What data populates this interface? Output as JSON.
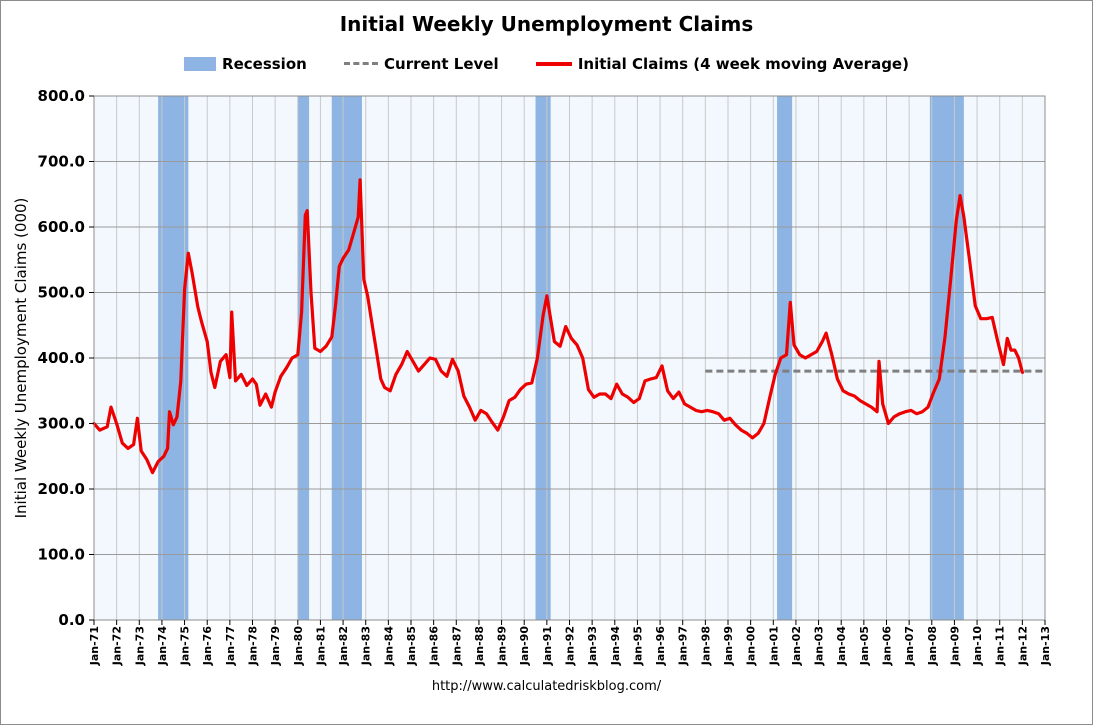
{
  "chart_data": {
    "type": "line",
    "title": "Initial Weekly Unemployment Claims",
    "ylabel": "Initial Weekly Unemployment Claims (000)",
    "xlabel": "",
    "source": "http://www.calculatedriskblog.com/",
    "ylim": [
      0,
      800
    ],
    "yticks": [
      "0.0",
      "100.0",
      "200.0",
      "300.0",
      "400.0",
      "500.0",
      "600.0",
      "700.0",
      "800.0"
    ],
    "xlim": [
      1971,
      2013
    ],
    "xticks": [
      "Jan-71",
      "Jan-72",
      "Jan-73",
      "Jan-74",
      "Jan-75",
      "Jan-76",
      "Jan-77",
      "Jan-78",
      "Jan-79",
      "Jan-80",
      "Jan-81",
      "Jan-82",
      "Jan-83",
      "Jan-84",
      "Jan-85",
      "Jan-86",
      "Jan-87",
      "Jan-88",
      "Jan-89",
      "Jan-90",
      "Jan-91",
      "Jan-92",
      "Jan-93",
      "Jan-94",
      "Jan-95",
      "Jan-96",
      "Jan-97",
      "Jan-98",
      "Jan-99",
      "Jan-00",
      "Jan-01",
      "Jan-02",
      "Jan-03",
      "Jan-04",
      "Jan-05",
      "Jan-06",
      "Jan-07",
      "Jan-08",
      "Jan-09",
      "Jan-10",
      "Jan-11",
      "Jan-12",
      "Jan-13"
    ],
    "grid": true,
    "legend_position": "top",
    "legend": [
      {
        "key": "recession",
        "label": "Recession",
        "color": "#8db4e2"
      },
      {
        "key": "current",
        "label": "Current Level",
        "color": "#7f7f7f"
      },
      {
        "key": "claims",
        "label": "Initial Claims (4 week moving Average)",
        "color": "#ee0000"
      }
    ],
    "recessions": [
      {
        "start": "1973-11",
        "end": "1975-03"
      },
      {
        "start": "1980-01",
        "end": "1980-07"
      },
      {
        "start": "1981-07",
        "end": "1982-11"
      },
      {
        "start": "1990-07",
        "end": "1991-03"
      },
      {
        "start": "2001-03",
        "end": "2001-11"
      },
      {
        "start": "2007-12",
        "end": "2009-06"
      }
    ],
    "current_level": {
      "value": 380,
      "start": "1998-01",
      "end": "2013-01"
    },
    "series": [
      {
        "name": "Initial Claims (4 week moving Average)",
        "points": [
          [
            "1971-01",
            300
          ],
          [
            "1971-04",
            290
          ],
          [
            "1971-08",
            295
          ],
          [
            "1971-10",
            325
          ],
          [
            "1972-01",
            300
          ],
          [
            "1972-04",
            270
          ],
          [
            "1972-07",
            262
          ],
          [
            "1972-10",
            268
          ],
          [
            "1972-12",
            308
          ],
          [
            "1973-02",
            258
          ],
          [
            "1973-05",
            245
          ],
          [
            "1973-08",
            225
          ],
          [
            "1973-11",
            242
          ],
          [
            "1974-02",
            250
          ],
          [
            "1974-04",
            262
          ],
          [
            "1974-05",
            318
          ],
          [
            "1974-07",
            298
          ],
          [
            "1974-09",
            310
          ],
          [
            "1974-11",
            365
          ],
          [
            "1975-01",
            505
          ],
          [
            "1975-03",
            560
          ],
          [
            "1975-05",
            530
          ],
          [
            "1975-08",
            478
          ],
          [
            "1975-10",
            455
          ],
          [
            "1976-01",
            425
          ],
          [
            "1976-03",
            378
          ],
          [
            "1976-05",
            355
          ],
          [
            "1976-08",
            395
          ],
          [
            "1976-11",
            405
          ],
          [
            "1977-01",
            370
          ],
          [
            "1977-02",
            470
          ],
          [
            "1977-04",
            365
          ],
          [
            "1977-07",
            375
          ],
          [
            "1977-10",
            358
          ],
          [
            "1978-01",
            368
          ],
          [
            "1978-03",
            360
          ],
          [
            "1978-05",
            328
          ],
          [
            "1978-08",
            345
          ],
          [
            "1978-11",
            325
          ],
          [
            "1979-01",
            348
          ],
          [
            "1979-04",
            372
          ],
          [
            "1979-07",
            385
          ],
          [
            "1979-10",
            400
          ],
          [
            "1980-01",
            405
          ],
          [
            "1980-03",
            470
          ],
          [
            "1980-05",
            618
          ],
          [
            "1980-06",
            625
          ],
          [
            "1980-08",
            500
          ],
          [
            "1980-10",
            415
          ],
          [
            "1981-01",
            410
          ],
          [
            "1981-04",
            418
          ],
          [
            "1981-07",
            432
          ],
          [
            "1981-09",
            480
          ],
          [
            "1981-11",
            540
          ],
          [
            "1982-01",
            552
          ],
          [
            "1982-04",
            565
          ],
          [
            "1982-07",
            595
          ],
          [
            "1982-09",
            615
          ],
          [
            "1982-10",
            672
          ],
          [
            "1982-12",
            520
          ],
          [
            "1983-02",
            495
          ],
          [
            "1983-05",
            440
          ],
          [
            "1983-07",
            405
          ],
          [
            "1983-09",
            368
          ],
          [
            "1983-11",
            355
          ],
          [
            "1984-02",
            350
          ],
          [
            "1984-05",
            375
          ],
          [
            "1984-08",
            390
          ],
          [
            "1984-11",
            410
          ],
          [
            "1985-02",
            395
          ],
          [
            "1985-05",
            380
          ],
          [
            "1985-08",
            390
          ],
          [
            "1985-11",
            400
          ],
          [
            "1986-02",
            398
          ],
          [
            "1986-05",
            380
          ],
          [
            "1986-08",
            372
          ],
          [
            "1986-11",
            398
          ],
          [
            "1987-02",
            380
          ],
          [
            "1987-05",
            342
          ],
          [
            "1987-08",
            325
          ],
          [
            "1987-11",
            305
          ],
          [
            "1988-02",
            320
          ],
          [
            "1988-05",
            315
          ],
          [
            "1988-08",
            302
          ],
          [
            "1988-11",
            290
          ],
          [
            "1989-02",
            310
          ],
          [
            "1989-05",
            335
          ],
          [
            "1989-08",
            340
          ],
          [
            "1989-11",
            352
          ],
          [
            "1990-02",
            360
          ],
          [
            "1990-05",
            362
          ],
          [
            "1990-08",
            400
          ],
          [
            "1990-11",
            465
          ],
          [
            "1991-01",
            495
          ],
          [
            "1991-03",
            460
          ],
          [
            "1991-05",
            425
          ],
          [
            "1991-08",
            418
          ],
          [
            "1991-11",
            448
          ],
          [
            "1992-02",
            430
          ],
          [
            "1992-05",
            420
          ],
          [
            "1992-08",
            400
          ],
          [
            "1992-11",
            352
          ],
          [
            "1993-02",
            340
          ],
          [
            "1993-05",
            345
          ],
          [
            "1993-08",
            345
          ],
          [
            "1993-11",
            338
          ],
          [
            "1994-02",
            360
          ],
          [
            "1994-05",
            345
          ],
          [
            "1994-08",
            340
          ],
          [
            "1994-11",
            332
          ],
          [
            "1995-02",
            338
          ],
          [
            "1995-05",
            365
          ],
          [
            "1995-08",
            368
          ],
          [
            "1995-11",
            370
          ],
          [
            "1996-02",
            388
          ],
          [
            "1996-05",
            350
          ],
          [
            "1996-08",
            338
          ],
          [
            "1996-11",
            348
          ],
          [
            "1997-02",
            330
          ],
          [
            "1997-05",
            325
          ],
          [
            "1997-08",
            320
          ],
          [
            "1997-11",
            318
          ],
          [
            "1998-02",
            320
          ],
          [
            "1998-05",
            318
          ],
          [
            "1998-08",
            315
          ],
          [
            "1998-11",
            305
          ],
          [
            "1999-02",
            308
          ],
          [
            "1999-05",
            298
          ],
          [
            "1999-08",
            290
          ],
          [
            "1999-11",
            285
          ],
          [
            "2000-02",
            278
          ],
          [
            "2000-05",
            285
          ],
          [
            "2000-08",
            300
          ],
          [
            "2000-11",
            338
          ],
          [
            "2001-02",
            375
          ],
          [
            "2001-05",
            400
          ],
          [
            "2001-08",
            405
          ],
          [
            "2001-10",
            485
          ],
          [
            "2001-12",
            420
          ],
          [
            "2002-03",
            405
          ],
          [
            "2002-06",
            400
          ],
          [
            "2002-09",
            405
          ],
          [
            "2002-12",
            410
          ],
          [
            "2003-03",
            425
          ],
          [
            "2003-05",
            438
          ],
          [
            "2003-08",
            405
          ],
          [
            "2003-11",
            368
          ],
          [
            "2004-02",
            350
          ],
          [
            "2004-05",
            345
          ],
          [
            "2004-08",
            342
          ],
          [
            "2004-11",
            335
          ],
          [
            "2005-02",
            330
          ],
          [
            "2005-05",
            325
          ],
          [
            "2005-08",
            318
          ],
          [
            "2005-09",
            395
          ],
          [
            "2005-11",
            330
          ],
          [
            "2006-02",
            300
          ],
          [
            "2006-05",
            310
          ],
          [
            "2006-08",
            315
          ],
          [
            "2006-11",
            318
          ],
          [
            "2007-02",
            320
          ],
          [
            "2007-05",
            315
          ],
          [
            "2007-08",
            318
          ],
          [
            "2007-11",
            325
          ],
          [
            "2008-02",
            348
          ],
          [
            "2008-05",
            368
          ],
          [
            "2008-08",
            432
          ],
          [
            "2008-11",
            520
          ],
          [
            "2009-02",
            610
          ],
          [
            "2009-04",
            648
          ],
          [
            "2009-06",
            615
          ],
          [
            "2009-09",
            550
          ],
          [
            "2009-12",
            480
          ],
          [
            "2010-03",
            460
          ],
          [
            "2010-06",
            460
          ],
          [
            "2010-09",
            462
          ],
          [
            "2010-12",
            425
          ],
          [
            "2011-03",
            390
          ],
          [
            "2011-05",
            430
          ],
          [
            "2011-07",
            412
          ],
          [
            "2011-09",
            412
          ],
          [
            "2011-11",
            400
          ],
          [
            "2012-01",
            378
          ]
        ]
      }
    ]
  }
}
